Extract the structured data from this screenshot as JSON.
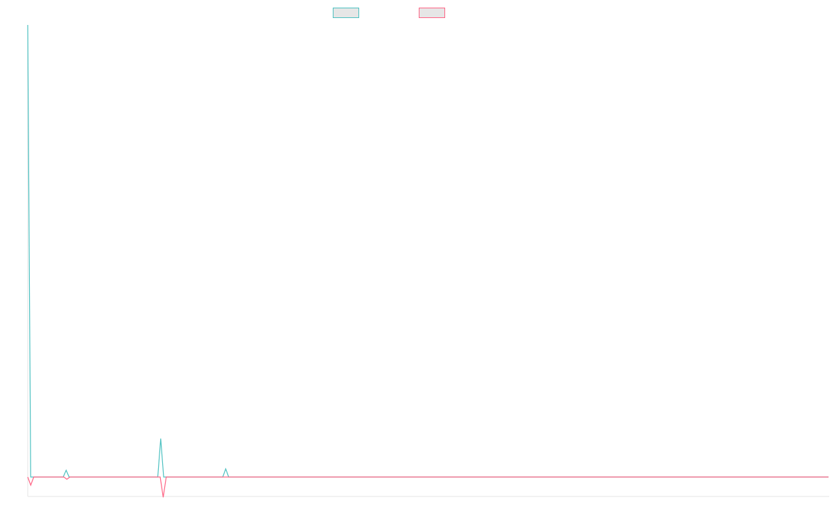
{
  "chart_data": {
    "type": "line",
    "title": "",
    "xlabel": "",
    "ylabel": "",
    "legend_position": "top-center",
    "grid": false,
    "ylim": [
      -0.05,
      1.0
    ],
    "series": [
      {
        "color": "#4bc0c0",
        "values": [
          1.0,
          0.0,
          0.0,
          0.0,
          0.0,
          0.0,
          0.0,
          0.0,
          0.0,
          0.0,
          0.0,
          0.0,
          0.0,
          0.015,
          0.0,
          0.0,
          0.0,
          0.0,
          0.0,
          0.0,
          0.0,
          0.0,
          0.0,
          0.0,
          0.0,
          0.0,
          0.0,
          0.0,
          0.0,
          0.0,
          0.0,
          0.0,
          0.0,
          0.0,
          0.0,
          0.0,
          0.0,
          0.0,
          0.0,
          0.0,
          0.0,
          0.0,
          0.0,
          0.0,
          0.0,
          0.085,
          0.0,
          0.0,
          0.0,
          0.0,
          0.0,
          0.0,
          0.0,
          0.0,
          0.0,
          0.0,
          0.0,
          0.0,
          0.0,
          0.0,
          0.0,
          0.0,
          0.0,
          0.0,
          0.0,
          0.0,
          0.0,
          0.018,
          0.0,
          0.0,
          0.0,
          0.0,
          0.0,
          0.0,
          0.0,
          0.0,
          0.0,
          0.0,
          0.0,
          0.0,
          0.0,
          0.0,
          0.0,
          0.0,
          0.0,
          0.0,
          0.0,
          0.0,
          0.0,
          0.0,
          0.0,
          0.0,
          0.0,
          0.0,
          0.0,
          0.0,
          0.0,
          0.0,
          0.0,
          0.0,
          0.0,
          0.0,
          0.0,
          0.0,
          0.0,
          0.0,
          0.0,
          0.0,
          0.0,
          0.0,
          0.0,
          0.0,
          0.0,
          0.0,
          0.0,
          0.0,
          0.0,
          0.0,
          0.0,
          0.0,
          0.0,
          0.0,
          0.0,
          0.0,
          0.0,
          0.0,
          0.0,
          0.0,
          0.0,
          0.0,
          0.0,
          0.0,
          0.0,
          0.0,
          0.0,
          0.0,
          0.0,
          0.0,
          0.0,
          0.0,
          0.0,
          0.0,
          0.0,
          0.0,
          0.0,
          0.0,
          0.0,
          0.0,
          0.0,
          0.0,
          0.0,
          0.0,
          0.0,
          0.0,
          0.0,
          0.0,
          0.0,
          0.0,
          0.0,
          0.0,
          0.0,
          0.0,
          0.0,
          0.0,
          0.0,
          0.0,
          0.0,
          0.0,
          0.0,
          0.0,
          0.0,
          0.0,
          0.0,
          0.0,
          0.0,
          0.0,
          0.0,
          0.0,
          0.0,
          0.0,
          0.0,
          0.0,
          0.0,
          0.0,
          0.0,
          0.0,
          0.0,
          0.0,
          0.0,
          0.0,
          0.0,
          0.0,
          0.0,
          0.0,
          0.0,
          0.0,
          0.0,
          0.0,
          0.0,
          0.0,
          0.0,
          0.0,
          0.0,
          0.0,
          0.0,
          0.0,
          0.0,
          0.0,
          0.0,
          0.0,
          0.0,
          0.0,
          0.0,
          0.0,
          0.0,
          0.0,
          0.0,
          0.0,
          0.0,
          0.0,
          0.0,
          0.0,
          0.0,
          0.0,
          0.0,
          0.0,
          0.0,
          0.0,
          0.0,
          0.0,
          0.0,
          0.0,
          0.0,
          0.0,
          0.0,
          0.0,
          0.0,
          0.0,
          0.0,
          0.0,
          0.0,
          0.0,
          0.0,
          0.0,
          0.0,
          0.0,
          0.0,
          0.0,
          0.0,
          0.0,
          0.0,
          0.0,
          0.0,
          0.0,
          0.0,
          0.0,
          0.0,
          0.0,
          0.0,
          0.0,
          0.0,
          0.0,
          0.0,
          0.0,
          0.0,
          0.0,
          0.0,
          0.0,
          0.0,
          0.0,
          0.0,
          0.0
        ]
      },
      {
        "color": "#ff6384",
        "values": [
          0.0,
          -0.018,
          0.0,
          0.0,
          0.0,
          0.0,
          0.0,
          0.0,
          0.0,
          0.0,
          0.0,
          0.0,
          0.0,
          -0.005,
          0.0,
          0.0,
          0.0,
          0.0,
          0.0,
          0.0,
          0.0,
          0.0,
          0.0,
          0.0,
          0.0,
          0.0,
          0.0,
          0.0,
          0.0,
          0.0,
          0.0,
          0.0,
          0.0,
          0.0,
          0.0,
          0.0,
          0.0,
          0.0,
          0.0,
          0.0,
          0.0,
          0.0,
          0.0,
          0.0,
          0.0,
          -0.045,
          0.0,
          0.0,
          0.0,
          0.0,
          0.0,
          0.0,
          0.0,
          0.0,
          0.0,
          0.0,
          0.0,
          0.0,
          0.0,
          0.0,
          0.0,
          0.0,
          0.0,
          0.0,
          0.0,
          0.0,
          0.0,
          0.0,
          0.0,
          0.0,
          0.0,
          0.0,
          0.0,
          0.0,
          0.0,
          0.0,
          0.0,
          0.0,
          0.0,
          0.0,
          0.0,
          0.0,
          0.0,
          0.0,
          0.0,
          0.0,
          0.0,
          0.0,
          0.0,
          0.0,
          0.0,
          0.0,
          0.0,
          0.0,
          0.0,
          0.0,
          0.0,
          0.0,
          0.0,
          0.0,
          0.0,
          0.0,
          0.0,
          0.0,
          0.0,
          0.0,
          0.0,
          0.0,
          0.0,
          0.0,
          0.0,
          0.0,
          0.0,
          0.0,
          0.0,
          0.0,
          0.0,
          0.0,
          0.0,
          0.0,
          0.0,
          0.0,
          0.0,
          0.0,
          0.0,
          0.0,
          0.0,
          0.0,
          0.0,
          0.0,
          0.0,
          0.0,
          0.0,
          0.0,
          0.0,
          0.0,
          0.0,
          0.0,
          0.0,
          0.0,
          0.0,
          0.0,
          0.0,
          0.0,
          0.0,
          0.0,
          0.0,
          0.0,
          0.0,
          0.0,
          0.0,
          0.0,
          0.0,
          0.0,
          0.0,
          0.0,
          0.0,
          0.0,
          0.0,
          0.0,
          0.0,
          0.0,
          0.0,
          0.0,
          0.0,
          0.0,
          0.0,
          0.0,
          0.0,
          0.0,
          0.0,
          0.0,
          0.0,
          0.0,
          0.0,
          0.0,
          0.0,
          0.0,
          0.0,
          0.0,
          0.0,
          0.0,
          0.0,
          0.0,
          0.0,
          0.0,
          0.0,
          0.0,
          0.0,
          0.0,
          0.0,
          0.0,
          0.0,
          0.0,
          0.0,
          0.0,
          0.0,
          0.0,
          0.0,
          0.0,
          0.0,
          0.0,
          0.0,
          0.0,
          0.0,
          0.0,
          0.0,
          0.0,
          0.0,
          0.0,
          0.0,
          0.0,
          0.0,
          0.0,
          0.0,
          0.0,
          0.0,
          0.0,
          0.0,
          0.0,
          0.0,
          0.0,
          0.0,
          0.0,
          0.0,
          0.0,
          0.0,
          0.0,
          0.0,
          0.0,
          0.0,
          0.0,
          0.0,
          0.0,
          0.0,
          0.0,
          0.0,
          0.0,
          0.0,
          0.0,
          0.0,
          0.0,
          0.0,
          0.0,
          0.0,
          0.0,
          0.0,
          0.0,
          0.0,
          0.0,
          0.0,
          0.0,
          0.0,
          0.0,
          0.0,
          0.0,
          0.0,
          0.0,
          0.0,
          0.0,
          0.0,
          0.0,
          0.0,
          0.0,
          0.0,
          0.0,
          0.0
        ]
      }
    ],
    "legend": [
      {
        "label": "",
        "color": "#4bc0c0",
        "fill": "#e6e6e6"
      },
      {
        "label": "",
        "color": "#ff6384",
        "fill": "#e6e6e6"
      }
    ]
  }
}
